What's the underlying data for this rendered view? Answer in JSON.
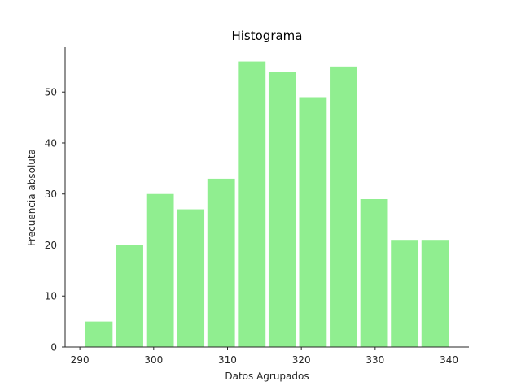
{
  "chart_data": {
    "type": "bar",
    "title": "Histograma",
    "xlabel": "Datos Agrupados",
    "ylabel": "Frecuencia absoluta",
    "bin_edges": [
      290.5,
      294.64,
      298.79,
      302.93,
      307.07,
      311.21,
      315.36,
      319.5,
      323.64,
      327.79,
      331.93,
      336.07,
      340.21
    ],
    "values": [
      5,
      20,
      30,
      27,
      33,
      56,
      54,
      49,
      55,
      29,
      21,
      21
    ],
    "xlim": [
      288.0,
      342.7
    ],
    "ylim": [
      0,
      58.8
    ],
    "xticks": [
      290,
      300,
      310,
      320,
      330,
      340
    ],
    "yticks": [
      0,
      10,
      20,
      30,
      40,
      50
    ],
    "bar_color": "#90ee90",
    "grid": false
  }
}
